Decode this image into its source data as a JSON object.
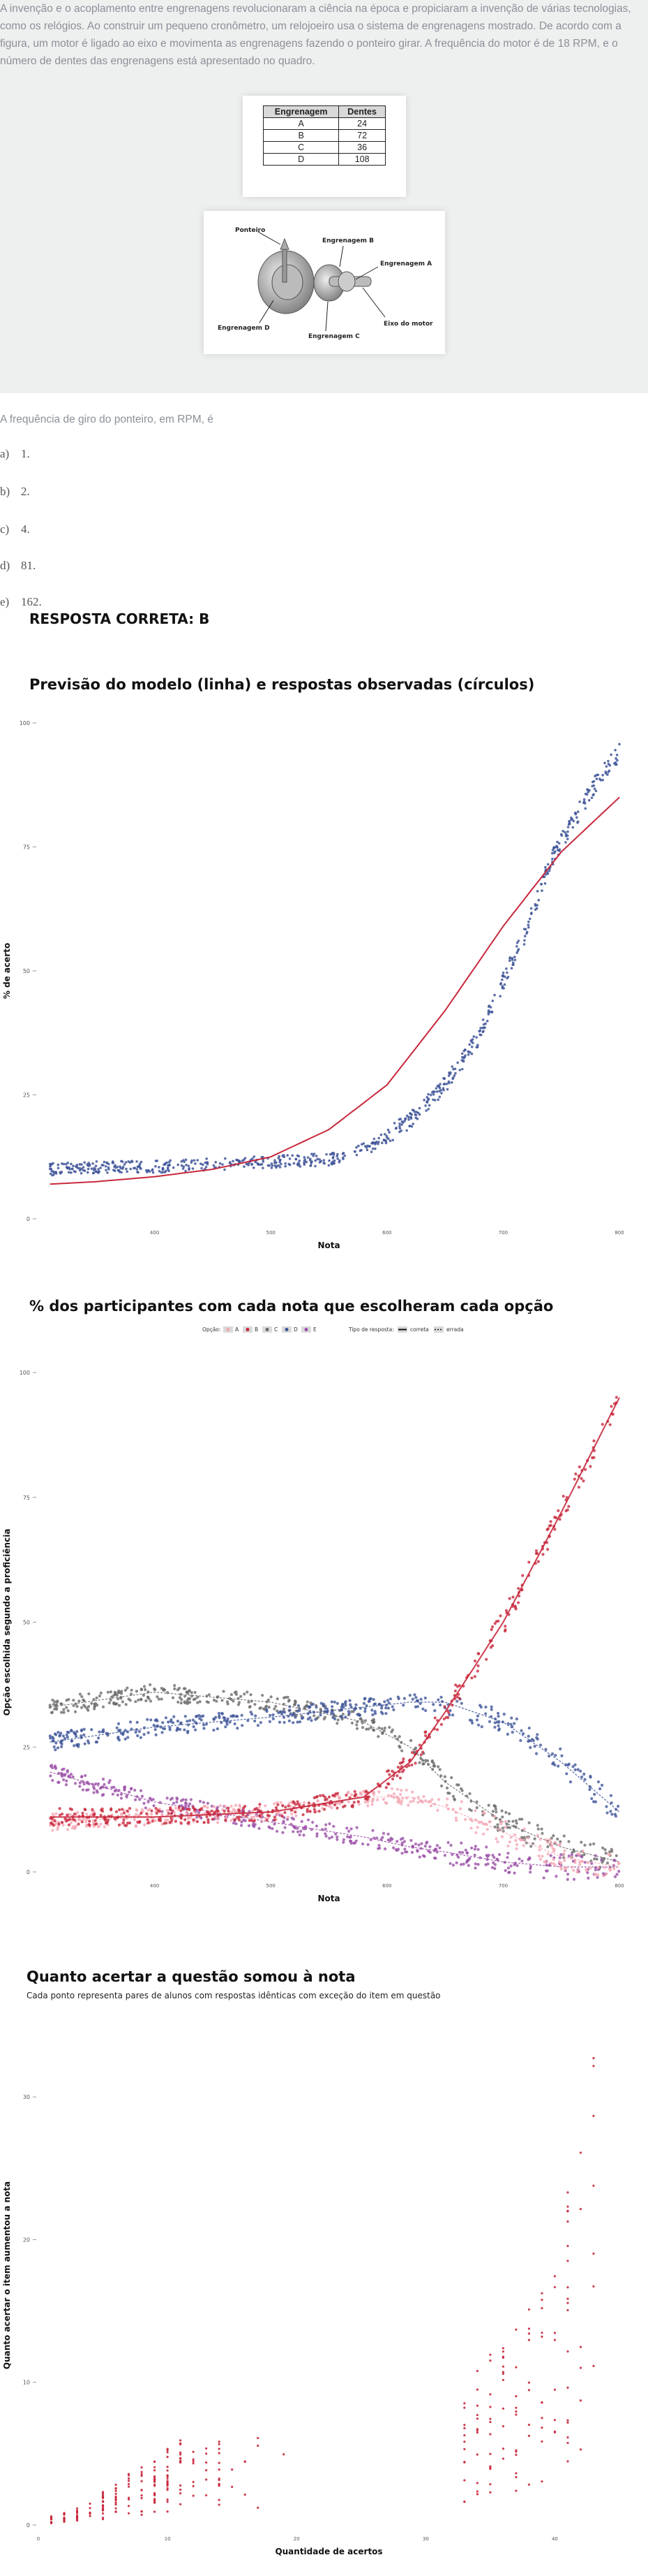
{
  "intro_text": "A invenção e o acoplamento entre engrenagens revolucionaram a ciência na época e propiciaram a invenção de várias tecnologias, como os relógios. Ao construir um pequeno cronômetro, um relojoeiro usa o sistema de engrenagens mostrado. De acordo com a figura, um motor é ligado ao eixo e movimenta as engrenagens fazendo o ponteiro girar. A frequência do motor é de 18 RPM, e o número de dentes das engrenagens está apresentado no quadro.",
  "gear_table": {
    "headers": [
      "Engrenagem",
      "Dentes"
    ],
    "rows": [
      [
        "A",
        "24"
      ],
      [
        "B",
        "72"
      ],
      [
        "C",
        "36"
      ],
      [
        "D",
        "108"
      ]
    ]
  },
  "figure_labels": {
    "pointer": "Ponteiro",
    "gear_a": "Engrenagem A",
    "gear_b": "Engrenagem B",
    "gear_c": "Engrenagem C",
    "gear_d": "Engrenagem D",
    "motor_axis": "Eixo do motor"
  },
  "question": "A frequência de giro do ponteiro, em RPM, é",
  "options": [
    {
      "letter": "a)",
      "text": "1."
    },
    {
      "letter": "b)",
      "text": "2."
    },
    {
      "letter": "c)",
      "text": "4."
    },
    {
      "letter": "d)",
      "text": "81."
    },
    {
      "letter": "e)",
      "text": "162."
    }
  ],
  "answer_label": "RESPOSTA CORRETA: B",
  "colors": {
    "model_line": "#c8283c",
    "observed": "#3f5599",
    "opt_a": "#f4a6b3",
    "opt_b": "#c8283c",
    "opt_c": "#6b6b6b",
    "opt_d": "#3f5599",
    "opt_e": "#9a4fa6"
  },
  "chart_data": [
    {
      "type": "scatter",
      "title": "Previsão do modelo (linha) e respostas observadas (círculos)",
      "xlabel": "Nota",
      "ylabel": "% de acerto",
      "xlim": [
        300,
        800
      ],
      "ylim": [
        0,
        100
      ],
      "xticks": [
        "400",
        "500",
        "600",
        "700",
        "800"
      ],
      "yticks": [
        "0",
        "25",
        "50",
        "75",
        "100"
      ],
      "series": [
        {
          "kind": "line",
          "x": [
            310,
            350,
            400,
            450,
            500,
            550,
            600,
            650,
            700,
            750,
            800
          ],
          "y": [
            7,
            7.5,
            8.5,
            10,
            12.5,
            18,
            27,
            42,
            59,
            74,
            85
          ]
        },
        {
          "kind": "points",
          "x": [
            310,
            350,
            400,
            450,
            500,
            550,
            590,
            620,
            650,
            680,
            700,
            720,
            740,
            760,
            780,
            800
          ],
          "y": [
            10,
            10.5,
            10.5,
            11,
            11.5,
            12,
            15,
            20,
            27,
            37,
            48,
            58,
            72,
            80,
            88,
            94
          ]
        }
      ]
    },
    {
      "type": "scatter",
      "title": "% dos participantes com cada nota que escolheram cada opção",
      "xlabel": "Nota",
      "ylabel": "Opção escolhida segundo a proficiência",
      "xlim": [
        300,
        800
      ],
      "ylim": [
        0,
        100
      ],
      "xticks": [
        "400",
        "500",
        "600",
        "700",
        "800"
      ],
      "yticks": [
        "0",
        "25",
        "50",
        "75",
        "100"
      ],
      "legend": {
        "option_title": "Opção:",
        "options": [
          "A",
          "B",
          "C",
          "D",
          "E"
        ],
        "type_title": "Tipo de resposta:",
        "types": [
          "correta",
          "errada"
        ]
      },
      "series": [
        {
          "name": "A",
          "x": [
            310,
            400,
            500,
            580,
            620,
            650,
            700,
            750,
            800
          ],
          "y": [
            10,
            11,
            12,
            15,
            15,
            13,
            8,
            3,
            1
          ]
        },
        {
          "name": "B",
          "x": [
            310,
            400,
            500,
            580,
            620,
            650,
            700,
            750,
            800
          ],
          "y": [
            11,
            11,
            12,
            15,
            22,
            32,
            50,
            72,
            95
          ]
        },
        {
          "name": "C",
          "x": [
            310,
            400,
            500,
            580,
            620,
            650,
            700,
            750,
            800
          ],
          "y": [
            33,
            36,
            34,
            30,
            25,
            18,
            10,
            5,
            2
          ]
        },
        {
          "name": "D",
          "x": [
            310,
            400,
            500,
            580,
            620,
            650,
            700,
            750,
            800
          ],
          "y": [
            26,
            29,
            31,
            33,
            34,
            34,
            30,
            22,
            12
          ]
        },
        {
          "name": "E",
          "x": [
            310,
            400,
            500,
            580,
            620,
            650,
            700,
            750,
            800
          ],
          "y": [
            20,
            14,
            10,
            7,
            5,
            4,
            2,
            1,
            1
          ]
        }
      ]
    },
    {
      "type": "scatter",
      "title": "Quanto acertar a questão somou à nota",
      "subtitle": "Cada ponto representa pares de alunos com respostas idênticas com exceção do item em questão",
      "xlabel": "Quantidade de acertos",
      "ylabel": "Quanto acertar o item aumentou a nota",
      "xlim": [
        0,
        45
      ],
      "ylim": [
        0,
        35
      ],
      "xticks": [
        "0",
        "10",
        "20",
        "30",
        "40"
      ],
      "yticks": [
        "0",
        "10",
        "20",
        "30"
      ],
      "series": [
        {
          "kind": "points",
          "x": [
            1,
            3,
            5,
            7,
            9,
            11,
            13,
            15,
            20,
            33,
            35,
            37,
            39,
            40,
            41,
            42,
            43
          ],
          "y": [
            0.5,
            1,
            2,
            3,
            4,
            5,
            5,
            6,
            5,
            8,
            10,
            12,
            14,
            17,
            21,
            25,
            33
          ]
        }
      ]
    }
  ]
}
